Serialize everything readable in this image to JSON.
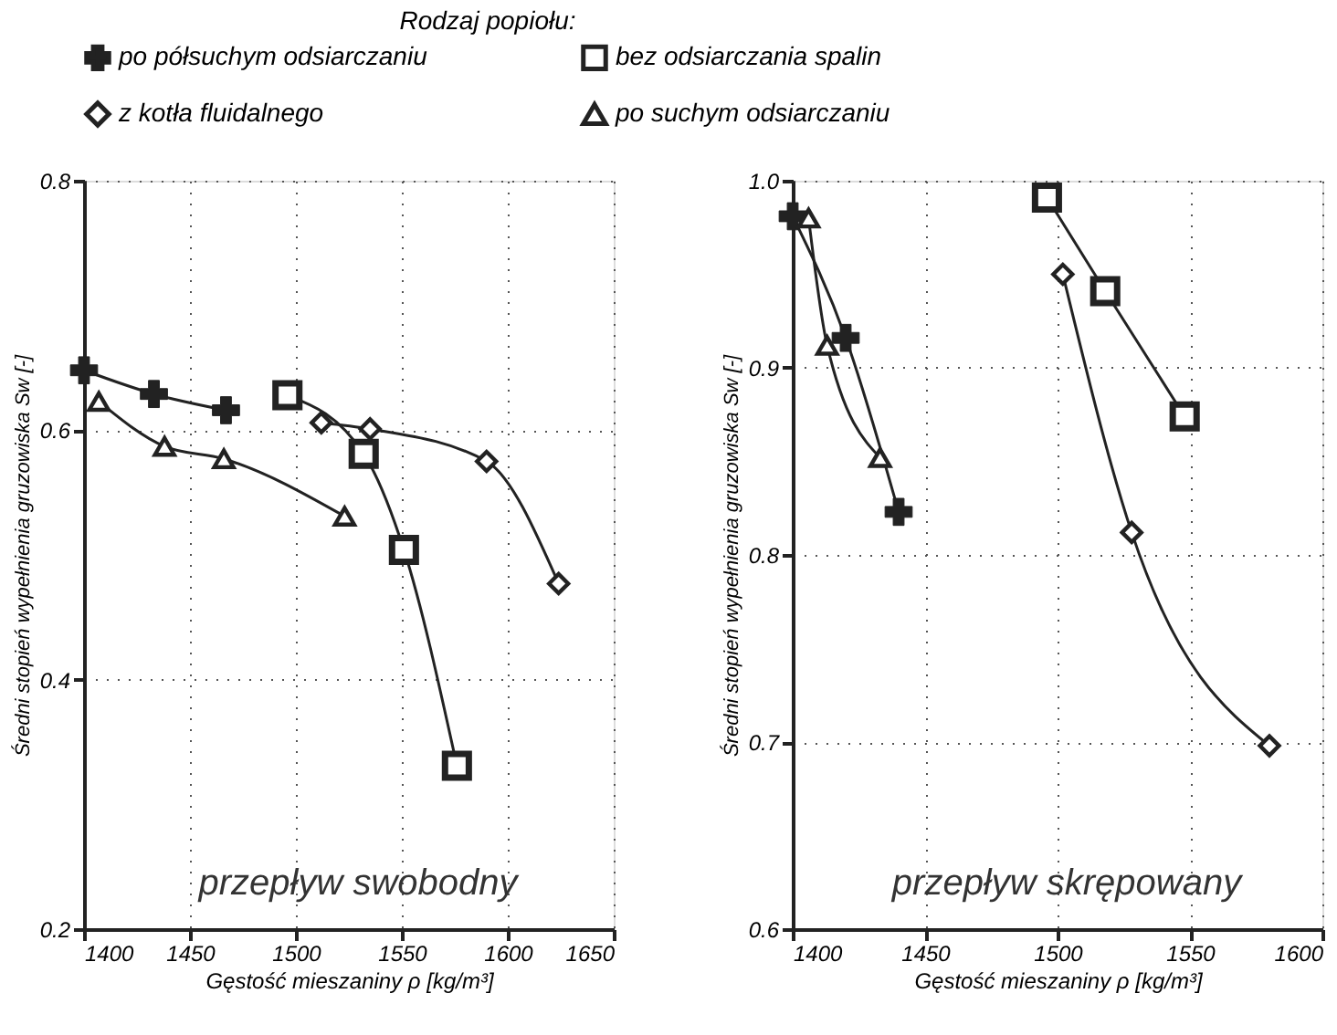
{
  "chart_data": [
    {
      "type": "line",
      "legend_title": "Rodzaj popiołu:",
      "legend": "top",
      "grid": true,
      "line_style": "solid",
      "xlabel": "Gęstość mieszaniny ρ [kg/m³]",
      "ylabel": "Średni stopień wypełnienia gruzowiska Sw [-]",
      "xlim": [
        1400,
        1650
      ],
      "xticks": [
        1400,
        1450,
        1500,
        1550,
        1600,
        1650
      ],
      "ylim": [
        0.2,
        0.8
      ],
      "yticks": [
        0.2,
        0.4,
        0.6,
        0.8
      ],
      "annotations": [
        "przepływ swobodny"
      ],
      "series": [
        {
          "name": "po półsuchym odsiarczaniu",
          "color": "#222222",
          "marker": "cross",
          "x": [
            1400,
            1433,
            1467
          ],
          "values": [
            0.648,
            0.629,
            0.616
          ]
        },
        {
          "name": "bez odsiarczania spalin",
          "color": "#222222",
          "marker": "square",
          "x": [
            1496,
            1532,
            1551,
            1576
          ],
          "values": [
            0.628,
            0.581,
            0.504,
            0.331
          ]
        },
        {
          "name": "z kotła fluidalnego",
          "color": "#222222",
          "marker": "diamond",
          "x": [
            1512,
            1535,
            1590,
            1624
          ],
          "values": [
            0.606,
            0.601,
            0.575,
            0.477
          ]
        },
        {
          "name": "po suchym odsiarczaniu",
          "color": "#222222",
          "marker": "triangle",
          "x": [
            1407,
            1438,
            1466,
            1523
          ],
          "values": [
            0.623,
            0.587,
            0.577,
            0.531
          ]
        }
      ]
    },
    {
      "type": "line",
      "grid": true,
      "line_style": "solid",
      "xlabel": "Gęstość mieszaniny ρ [kg/m³]",
      "ylabel": "Średni stopień wypełnienia gruzowiska Sw [-]",
      "xlim": [
        1400,
        1600
      ],
      "xticks": [
        1400,
        1450,
        1500,
        1550,
        1600
      ],
      "ylim": [
        0.6,
        1.0
      ],
      "yticks": [
        0.6,
        0.7,
        0.8,
        0.9,
        {
          "value": 1.0,
          "label": "1.0"
        }
      ],
      "annotations": [
        "przepływ skrępowany"
      ],
      "series": [
        {
          "color": "#222222",
          "marker": "cross",
          "x": [
            1400,
            1420,
            1440
          ],
          "values": [
            0.981,
            0.916,
            0.823
          ]
        },
        {
          "color": "#222222",
          "marker": "square",
          "x": [
            1496,
            1518,
            1548
          ],
          "values": [
            0.991,
            0.941,
            0.874
          ]
        },
        {
          "color": "#222222",
          "marker": "diamond",
          "x": [
            1502,
            1528,
            1580
          ],
          "values": [
            0.95,
            0.812,
            0.698
          ]
        },
        {
          "color": "#222222",
          "marker": "triangle",
          "x": [
            1406,
            1413,
            1433
          ],
          "values": [
            0.98,
            0.912,
            0.852
          ]
        }
      ]
    }
  ]
}
